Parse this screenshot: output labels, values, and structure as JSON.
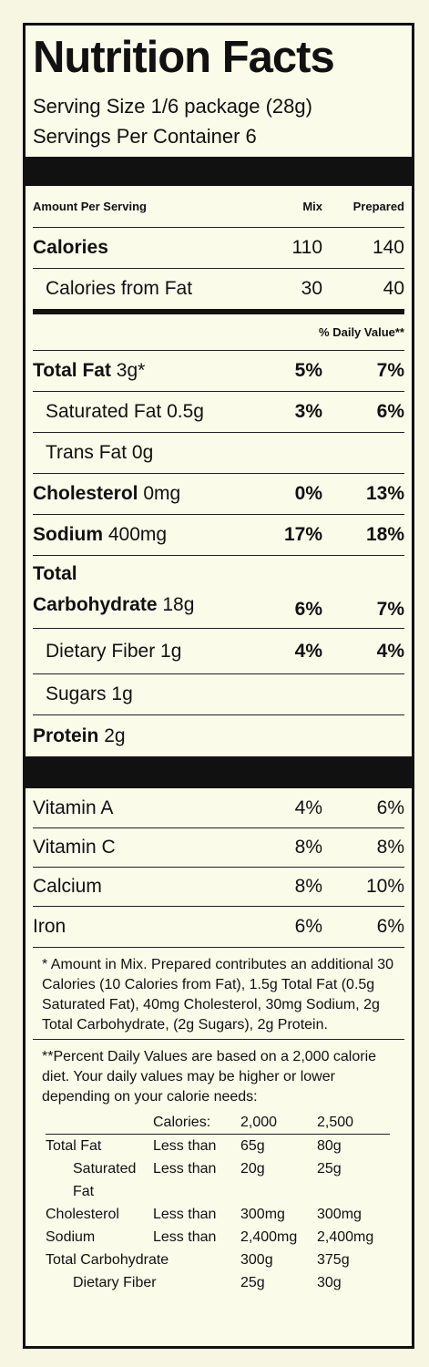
{
  "title": "Nutrition Facts",
  "serving_size": "Serving Size 1/6 package (28g)",
  "servings_per_container": "Servings Per Container 6",
  "columns": {
    "amount": "Amount Per Serving",
    "mix": "Mix",
    "prepared": "Prepared"
  },
  "calories": {
    "label": "Calories",
    "mix": "110",
    "prepared": "140"
  },
  "calories_from_fat": {
    "label": "Calories from Fat",
    "mix": "30",
    "prepared": "40"
  },
  "daily_value_header": "% Daily Value**",
  "nutrients": [
    {
      "name": "Total Fat",
      "amount": "3g*",
      "mix": "5%",
      "prepared": "7%"
    },
    {
      "name": "Saturated Fat",
      "amount": "0.5g",
      "mix": "3%",
      "prepared": "6%"
    },
    {
      "name": "Trans Fat",
      "amount": "0g"
    },
    {
      "name": "Cholesterol",
      "amount": "0mg",
      "mix": "0%",
      "prepared": "13%"
    },
    {
      "name": "Sodium",
      "amount": "400mg",
      "mix": "17%",
      "prepared": "18%"
    },
    {
      "name": "Total Carbohydrate",
      "amount": "18g",
      "mix": "6%",
      "prepared": "7%"
    },
    {
      "name": "Dietary Fiber",
      "amount": "1g",
      "mix": "4%",
      "prepared": "4%"
    },
    {
      "name": "Sugars",
      "amount": "1g"
    },
    {
      "name": "Protein",
      "amount": "2g"
    }
  ],
  "vitamins": [
    {
      "name": "Vitamin A",
      "mix": "4%",
      "prepared": "6%"
    },
    {
      "name": "Vitamin C",
      "mix": "8%",
      "prepared": "8%"
    },
    {
      "name": "Calcium",
      "mix": "8%",
      "prepared": "10%"
    },
    {
      "name": "Iron",
      "mix": "6%",
      "prepared": "6%"
    }
  ],
  "footnote_mix": "* Amount in Mix. Prepared contributes an additional 30 Calories (10 Calories from Fat), 1.5g Total Fat (0.5g Saturated Fat), 40mg Cholesterol, 30mg Sodium, 2g Total Carbohydrate, (2g Sugars), 2g Protein.",
  "footnote_dv": "**Percent Daily Values are based on a 2,000 calorie diet. Your daily values may be higher or lower depending on your calorie needs:",
  "dv_table": {
    "header": [
      "Calories:",
      "2,000",
      "2,500"
    ],
    "rows": [
      [
        "Total Fat",
        "Less than",
        "65g",
        "80g"
      ],
      [
        "Saturated Fat",
        "Less than",
        "20g",
        "25g"
      ],
      [
        "Cholesterol",
        "Less than",
        "300mg",
        "300mg"
      ],
      [
        "Sodium",
        "Less than",
        "2,400mg",
        "2,400mg"
      ],
      [
        "Total Carbohydrate",
        "",
        "300g",
        "375g"
      ],
      [
        "Dietary Fiber",
        "",
        "25g",
        "30g"
      ]
    ]
  }
}
